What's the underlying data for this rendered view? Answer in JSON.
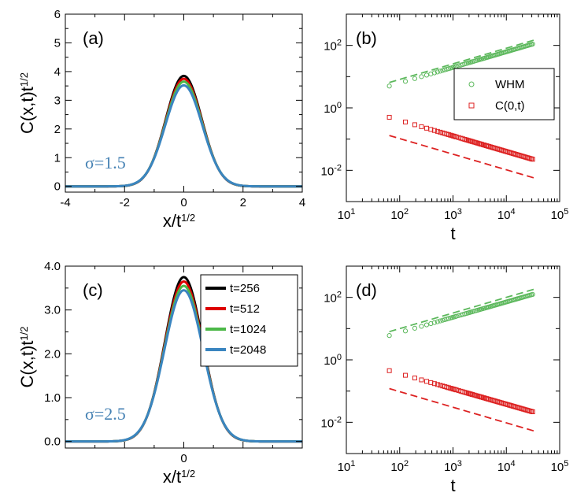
{
  "chart_data": [
    {
      "id": "a",
      "type": "line",
      "panel_label": "(a)",
      "xlabel": "x/t",
      "xlabel_sup": "1/2",
      "ylabel": "C(x,t)t",
      "ylabel_sup": "1/2",
      "xlim": [
        -4,
        4
      ],
      "ylim": [
        -0.2,
        6
      ],
      "xticks": [
        "-4",
        "-2",
        "0",
        "2",
        "4"
      ],
      "yticks": [
        "0",
        "1",
        "2",
        "3",
        "4",
        "5",
        "6"
      ],
      "annotation": "σ=1.5",
      "annotation_color": "#4682b4",
      "series": [
        {
          "name": "t=256",
          "color": "#000000",
          "peak": 3.85,
          "width": 0.61
        },
        {
          "name": "t=512",
          "color": "#dd0000",
          "peak": 3.75,
          "width": 0.615
        },
        {
          "name": "t=1024",
          "color": "#4cb848",
          "peak": 3.65,
          "width": 0.62
        },
        {
          "name": "t=2048",
          "color": "#3a85c0",
          "peak": 3.52,
          "width": 0.625
        }
      ]
    },
    {
      "id": "b",
      "type": "scatter",
      "panel_label": "(b)",
      "xlabel": "t",
      "xscale": "log",
      "yscale": "log",
      "xlim_exp": [
        1,
        5
      ],
      "ylim_exp": [
        -3,
        3
      ],
      "xticks": [
        {
          "base": "10",
          "exp": "1"
        },
        {
          "base": "10",
          "exp": "2"
        },
        {
          "base": "10",
          "exp": "3"
        },
        {
          "base": "10",
          "exp": "4"
        },
        {
          "base": "10",
          "exp": "5"
        }
      ],
      "yticks": [
        {
          "base": "10",
          "exp": "-2"
        },
        {
          "base": "10",
          "exp": "0"
        },
        {
          "base": "10",
          "exp": "2"
        }
      ],
      "legend_position": "right-middle",
      "series": [
        {
          "name": "WHM",
          "marker": "circle",
          "color": "#5cb85c",
          "t_range": [
            64,
            32768
          ],
          "y_start": 5,
          "slope": 0.5
        },
        {
          "name": "C(0,t)",
          "marker": "square",
          "color": "#dd2222",
          "t_range": [
            64,
            32768
          ],
          "y_start": 0.5,
          "slope": -0.5
        }
      ],
      "reference_lines": [
        {
          "color": "#5cb85c",
          "style": "dashed",
          "t_range": [
            64,
            32768
          ],
          "y_start": 6.5,
          "slope": 0.5
        },
        {
          "color": "#dd2222",
          "style": "dashed",
          "t_range": [
            64,
            32768
          ],
          "y_start": 0.13,
          "slope": -0.5
        }
      ]
    },
    {
      "id": "c",
      "type": "line",
      "panel_label": "(c)",
      "xlabel": "x/t",
      "xlabel_sup": "1/2",
      "ylabel": "C(x,t)t",
      "ylabel_sup": "1/2",
      "xlim": [
        -4,
        4
      ],
      "ylim": [
        -0.15,
        4
      ],
      "xticks": [
        "0"
      ],
      "yticks": [
        "0.0",
        "1.0",
        "2.0",
        "3.0",
        "4.0"
      ],
      "annotation": "σ=2.5",
      "annotation_color": "#4682b4",
      "legend_position": "top-right",
      "series": [
        {
          "name": "t=256",
          "color": "#000000",
          "peak": 3.75,
          "width": 0.64
        },
        {
          "name": "t=512",
          "color": "#dd0000",
          "peak": 3.65,
          "width": 0.645
        },
        {
          "name": "t=1024",
          "color": "#4cb848",
          "peak": 3.55,
          "width": 0.65
        },
        {
          "name": "t=2048",
          "color": "#3a85c0",
          "peak": 3.45,
          "width": 0.655
        }
      ]
    },
    {
      "id": "d",
      "type": "scatter",
      "panel_label": "(d)",
      "xlabel": "t",
      "xscale": "log",
      "yscale": "log",
      "xlim_exp": [
        1,
        5
      ],
      "ylim_exp": [
        -3,
        3
      ],
      "xticks": [
        {
          "base": "10",
          "exp": "1"
        },
        {
          "base": "10",
          "exp": "2"
        },
        {
          "base": "10",
          "exp": "3"
        },
        {
          "base": "10",
          "exp": "4"
        },
        {
          "base": "10",
          "exp": "5"
        }
      ],
      "yticks": [
        {
          "base": "10",
          "exp": "-2"
        },
        {
          "base": "10",
          "exp": "0"
        },
        {
          "base": "10",
          "exp": "2"
        }
      ],
      "series": [
        {
          "name": "WHM",
          "marker": "circle",
          "color": "#5cb85c",
          "t_range": [
            64,
            32768
          ],
          "y_start": 6,
          "slope": 0.49
        },
        {
          "name": "C(0,t)",
          "marker": "square",
          "color": "#dd2222",
          "t_range": [
            64,
            32768
          ],
          "y_start": 0.45,
          "slope": -0.49
        }
      ],
      "reference_lines": [
        {
          "color": "#5cb85c",
          "style": "dashed",
          "t_range": [
            64,
            32768
          ],
          "y_start": 8,
          "slope": 0.5
        },
        {
          "color": "#dd2222",
          "style": "dashed",
          "t_range": [
            64,
            32768
          ],
          "y_start": 0.12,
          "slope": -0.5
        }
      ]
    }
  ]
}
